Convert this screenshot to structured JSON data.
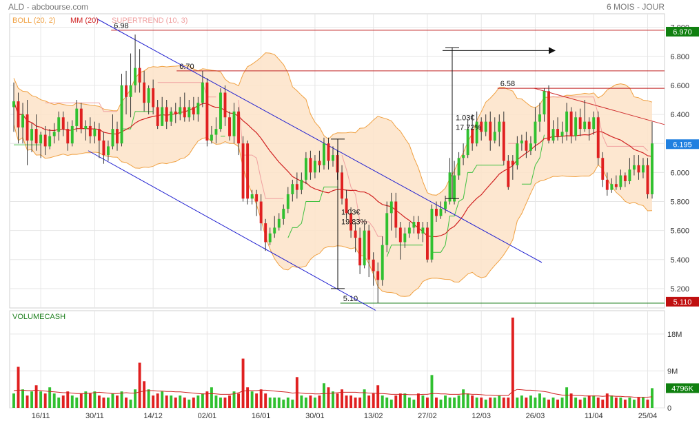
{
  "header": {
    "title": "ALD - abcbourse.com",
    "period": "6 MOIS - JOUR"
  },
  "legend": [
    {
      "label": "BOLL (20, 2)",
      "color": "#f0a040"
    },
    {
      "label": "MM (20)",
      "color": "#d02020"
    },
    {
      "label": "SUPERTREND (10, 3)",
      "color": "#f0a0a0"
    }
  ],
  "colors": {
    "up": "#30c030",
    "down": "#e02020",
    "boll_fill": "#fde3c8",
    "boll_line": "#f0a040",
    "ma": "#d02020",
    "supertrend_up": "#40c040",
    "supertrend_down": "#f0a0a0",
    "channel": "#2020d0",
    "level": "#c02020",
    "support": "#208020",
    "price_tag": "#2080e0",
    "grid": "#e6e6e6"
  },
  "chart_data": {
    "type": "candlestick",
    "x_ticks": [
      "16/11",
      "30/11",
      "14/12",
      "02/01",
      "16/01",
      "30/01",
      "13/02",
      "27/02",
      "12/03",
      "26/03",
      "11/04",
      "25/04"
    ],
    "price": {
      "ylim": [
        5.1,
        7.06
      ],
      "y_ticks": [
        "7.000",
        "6.800",
        "6.600",
        "6.400",
        "6.200",
        "6.000",
        "5.800",
        "5.600",
        "5.400",
        "5.200"
      ],
      "last_price": "6.195",
      "resistance_tag": "6.970",
      "support_tag": "5.110",
      "candles": [
        [
          6.45,
          6.49,
          6.62,
          6.28
        ],
        [
          6.49,
          6.31,
          6.55,
          6.2
        ],
        [
          6.31,
          6.4,
          6.48,
          6.2
        ],
        [
          6.4,
          6.22,
          6.5,
          6.05
        ],
        [
          6.22,
          6.3,
          6.34,
          6.14
        ],
        [
          6.3,
          6.2,
          6.4,
          6.15
        ],
        [
          6.2,
          6.26,
          6.28,
          6.1
        ],
        [
          6.26,
          6.18,
          6.32,
          6.12
        ],
        [
          6.18,
          6.25,
          6.3,
          6.16
        ],
        [
          6.25,
          6.28,
          6.34,
          6.2
        ],
        [
          6.28,
          6.38,
          6.42,
          6.22
        ],
        [
          6.38,
          6.3,
          6.42,
          6.25
        ],
        [
          6.3,
          6.2,
          6.35,
          6.15
        ],
        [
          6.2,
          6.32,
          6.36,
          6.18
        ],
        [
          6.32,
          6.44,
          6.5,
          6.28
        ],
        [
          6.44,
          6.3,
          6.48,
          6.27
        ],
        [
          6.3,
          6.32,
          6.36,
          6.22
        ],
        [
          6.32,
          6.25,
          6.38,
          6.2
        ],
        [
          6.25,
          6.3,
          6.35,
          6.2
        ],
        [
          6.3,
          6.22,
          6.34,
          6.1
        ],
        [
          6.22,
          6.12,
          6.28,
          6.06
        ],
        [
          6.12,
          6.18,
          6.22,
          6.08
        ],
        [
          6.18,
          6.3,
          6.4,
          6.16
        ],
        [
          6.3,
          6.2,
          6.35,
          6.15
        ],
        [
          6.2,
          6.6,
          6.68,
          6.18
        ],
        [
          6.6,
          6.52,
          6.7,
          6.4
        ],
        [
          6.52,
          6.6,
          6.82,
          6.38
        ],
        [
          6.6,
          6.72,
          6.95,
          6.55
        ],
        [
          6.72,
          6.62,
          6.85,
          6.55
        ],
        [
          6.62,
          6.48,
          6.7,
          6.42
        ],
        [
          6.48,
          6.58,
          6.6,
          6.4
        ],
        [
          6.58,
          6.45,
          6.64,
          6.4
        ],
        [
          6.45,
          6.32,
          6.5,
          6.3
        ],
        [
          6.32,
          6.45,
          6.52,
          6.35
        ],
        [
          6.45,
          6.35,
          6.5,
          6.3
        ],
        [
          6.35,
          6.42,
          6.45,
          6.32
        ],
        [
          6.42,
          6.4,
          6.48,
          6.34
        ],
        [
          6.4,
          6.45,
          6.52,
          6.36
        ],
        [
          6.45,
          6.38,
          6.55,
          6.35
        ],
        [
          6.38,
          6.45,
          6.5,
          6.35
        ],
        [
          6.45,
          6.4,
          6.52,
          6.36
        ],
        [
          6.4,
          6.48,
          6.52,
          6.35
        ],
        [
          6.48,
          6.62,
          6.7,
          6.45
        ],
        [
          6.62,
          6.22,
          6.65,
          6.18
        ],
        [
          6.22,
          6.26,
          6.32,
          6.2
        ],
        [
          6.26,
          6.3,
          6.38,
          6.2
        ],
        [
          6.3,
          6.55,
          6.58,
          6.28
        ],
        [
          6.55,
          6.38,
          6.6,
          6.32
        ],
        [
          6.38,
          6.25,
          6.42,
          6.22
        ],
        [
          6.25,
          6.42,
          6.48,
          6.2
        ],
        [
          6.42,
          6.2,
          6.45,
          6.12
        ],
        [
          6.2,
          5.82,
          6.25,
          5.8
        ],
        [
          6.2,
          5.82,
          6.22,
          5.78
        ],
        [
          5.82,
          5.85,
          5.88,
          5.78
        ],
        [
          5.85,
          5.8,
          5.88,
          5.7
        ],
        [
          5.8,
          5.65,
          5.85,
          5.6
        ],
        [
          5.65,
          5.52,
          5.68,
          5.46
        ],
        [
          5.52,
          5.58,
          5.62,
          5.5
        ],
        [
          5.58,
          5.62,
          5.7,
          5.55
        ],
        [
          5.62,
          5.68,
          5.72,
          5.6
        ],
        [
          5.68,
          5.75,
          5.78,
          5.64
        ],
        [
          5.75,
          5.85,
          5.9,
          5.72
        ],
        [
          5.85,
          5.92,
          5.95,
          5.8
        ],
        [
          5.92,
          5.88,
          6.0,
          5.82
        ],
        [
          5.88,
          5.95,
          6.0,
          5.85
        ],
        [
          5.95,
          6.1,
          6.14,
          5.92
        ],
        [
          6.1,
          6.0,
          6.15,
          5.95
        ],
        [
          6.0,
          6.08,
          6.12,
          5.96
        ],
        [
          6.08,
          6.05,
          6.15,
          6.0
        ],
        [
          6.05,
          6.2,
          6.24,
          6.02
        ],
        [
          6.2,
          6.08,
          6.24,
          6.02
        ],
        [
          6.08,
          6.12,
          6.18,
          6.04
        ],
        [
          6.12,
          6.0,
          6.15,
          5.95
        ],
        [
          6.0,
          5.82,
          6.05,
          5.78
        ],
        [
          5.82,
          5.72,
          5.88,
          5.68
        ],
        [
          5.72,
          5.6,
          5.76,
          5.55
        ],
        [
          5.6,
          5.55,
          5.65,
          5.45
        ],
        [
          5.55,
          5.36,
          5.62,
          5.3
        ],
        [
          5.36,
          5.6,
          5.65,
          5.34
        ],
        [
          5.6,
          5.4,
          5.64,
          5.28
        ],
        [
          5.4,
          5.32,
          5.45,
          5.22
        ],
        [
          5.32,
          5.26,
          5.38,
          5.1
        ],
        [
          5.26,
          5.5,
          5.56,
          5.22
        ],
        [
          5.5,
          5.72,
          5.8,
          5.45
        ],
        [
          5.72,
          5.8,
          5.86,
          5.6
        ],
        [
          5.8,
          5.62,
          5.86,
          5.55
        ],
        [
          5.62,
          5.52,
          5.66,
          5.4
        ],
        [
          5.52,
          5.58,
          5.62,
          5.48
        ],
        [
          5.58,
          5.62,
          5.66,
          5.55
        ],
        [
          5.62,
          5.66,
          5.7,
          5.58
        ],
        [
          5.66,
          5.58,
          5.7,
          5.54
        ],
        [
          5.58,
          5.62,
          5.66,
          5.52
        ],
        [
          5.62,
          5.4,
          5.66,
          5.38
        ],
        [
          5.4,
          5.75,
          5.78,
          5.38
        ],
        [
          5.75,
          5.7,
          5.8,
          5.66
        ],
        [
          5.7,
          5.75,
          5.8,
          5.68
        ],
        [
          5.75,
          5.8,
          5.84,
          5.72
        ],
        [
          5.8,
          6.0,
          6.1,
          5.78
        ],
        [
          5.8,
          5.98,
          6.08,
          5.78
        ],
        [
          5.98,
          6.1,
          6.14,
          5.95
        ],
        [
          6.1,
          6.12,
          6.2,
          6.05
        ],
        [
          6.12,
          6.3,
          6.36,
          6.1
        ],
        [
          6.3,
          6.2,
          6.4,
          6.15
        ],
        [
          6.2,
          6.35,
          6.42,
          6.18
        ],
        [
          6.35,
          6.28,
          6.38,
          6.22
        ],
        [
          6.28,
          6.35,
          6.4,
          6.25
        ],
        [
          6.35,
          6.22,
          6.42,
          6.15
        ],
        [
          6.22,
          6.28,
          6.38,
          6.2
        ],
        [
          6.28,
          6.35,
          6.4,
          6.18
        ],
        [
          6.35,
          6.08,
          6.42,
          6.05
        ],
        [
          6.08,
          5.9,
          6.12,
          5.88
        ],
        [
          6.08,
          6.05,
          6.12,
          5.95
        ],
        [
          6.05,
          6.2,
          6.25,
          6.02
        ],
        [
          6.2,
          6.22,
          6.26,
          6.15
        ],
        [
          6.22,
          6.15,
          6.28,
          6.1
        ],
        [
          6.15,
          6.2,
          6.25,
          6.12
        ],
        [
          6.2,
          6.35,
          6.45,
          6.15
        ],
        [
          6.35,
          6.4,
          6.48,
          6.28
        ],
        [
          6.4,
          6.56,
          6.58,
          6.35
        ],
        [
          6.56,
          6.22,
          6.6,
          6.2
        ],
        [
          6.22,
          6.3,
          6.36,
          6.2
        ],
        [
          6.3,
          6.25,
          6.38,
          6.22
        ],
        [
          6.25,
          6.28,
          6.35,
          6.2
        ],
        [
          6.28,
          6.42,
          6.48,
          6.22
        ],
        [
          6.42,
          6.25,
          6.45,
          6.2
        ],
        [
          6.25,
          6.38,
          6.42,
          6.22
        ],
        [
          6.38,
          6.3,
          6.44,
          6.25
        ],
        [
          6.3,
          6.35,
          6.5,
          6.28
        ],
        [
          6.35,
          6.3,
          6.38,
          6.22
        ],
        [
          6.3,
          6.38,
          6.42,
          6.26
        ],
        [
          6.38,
          6.1,
          6.42,
          6.05
        ],
        [
          6.1,
          5.95,
          6.14,
          5.9
        ],
        [
          5.95,
          5.88,
          6.0,
          5.84
        ],
        [
          5.88,
          5.92,
          5.96,
          5.86
        ],
        [
          5.92,
          5.9,
          5.98,
          5.88
        ],
        [
          5.9,
          5.98,
          6.02,
          5.88
        ],
        [
          5.98,
          5.94,
          6.0,
          5.9
        ],
        [
          5.94,
          6.02,
          6.1,
          5.92
        ],
        [
          6.02,
          6.05,
          6.12,
          5.98
        ],
        [
          6.05,
          6.0,
          6.12,
          5.95
        ],
        [
          6.0,
          6.05,
          6.1,
          5.96
        ],
        [
          6.05,
          5.85,
          6.1,
          5.82
        ],
        [
          5.85,
          6.2,
          6.35,
          5.82
        ]
      ],
      "levels": [
        {
          "label": "6.98",
          "value": 6.98,
          "color": "#c02020"
        },
        {
          "label": "6.70",
          "value": 6.7,
          "color": "#c02020"
        },
        {
          "label": "6.58",
          "value": 6.58,
          "color": "#c02020"
        },
        {
          "label": "5.10",
          "value": 5.1,
          "color": "#208020"
        }
      ],
      "annotations": [
        {
          "line1": "1.03€",
          "line2": "19.83%"
        },
        {
          "line1": "1.03€",
          "line2": "17.72%"
        }
      ]
    },
    "volume": {
      "title": "VOLUMECASH",
      "ylim": [
        0,
        22
      ],
      "y_ticks": [
        "18M",
        "9M",
        "0"
      ],
      "last_volume": "4796K",
      "values": [
        3.5,
        10.0,
        4.5,
        3.0,
        4.0,
        5.5,
        4.0,
        3.5,
        5.0,
        3.5,
        2.5,
        3.0,
        4.0,
        3.0,
        2.5,
        3.5,
        4.0,
        3.5,
        4.0,
        3.0,
        2.5,
        2.5,
        3.5,
        3.0,
        4.0,
        2.5,
        2.0,
        4.5,
        11.0,
        6.5,
        4.5,
        3.0,
        3.5,
        4.0,
        3.0,
        3.0,
        2.5,
        3.0,
        2.5,
        2.0,
        2.5,
        3.0,
        3.5,
        4.0,
        5.0,
        3.0,
        2.5,
        2.5,
        3.0,
        4.0,
        3.5,
        12.0,
        5.0,
        4.0,
        3.5,
        4.5,
        3.5,
        2.5,
        2.5,
        2.5,
        2.0,
        2.5,
        2.0,
        7.5,
        3.0,
        2.5,
        3.0,
        2.5,
        3.0,
        6.0,
        5.0,
        4.0,
        3.5,
        4.5,
        3.0,
        3.0,
        2.5,
        2.5,
        4.5,
        3.0,
        3.5,
        5.5,
        3.0,
        2.5,
        2.0,
        3.0,
        3.5,
        3.5,
        2.5,
        2.0,
        3.5,
        3.0,
        2.5,
        8.0,
        2.5,
        2.0,
        3.0,
        2.5,
        2.5,
        3.0,
        4.5,
        3.5,
        3.0,
        2.5,
        2.5,
        2.0,
        2.5,
        2.5,
        3.0,
        2.5,
        2.5,
        22.0,
        2.5,
        3.0,
        2.5,
        3.0,
        2.5,
        3.5,
        2.5,
        2.0,
        2.5,
        2.0,
        2.5,
        5.0,
        3.5,
        2.5,
        2.0,
        2.5,
        3.0,
        3.0,
        2.5,
        2.0,
        3.5,
        3.0,
        2.5,
        2.5,
        2.0,
        2.5,
        2.0,
        2.5,
        2.5,
        2.0,
        4.8
      ],
      "ma_values": [
        4.2,
        4.3,
        4.3,
        4.2,
        4.2,
        4.3,
        4.2,
        4.1,
        4.0,
        3.9,
        3.8,
        3.7,
        3.7,
        3.6,
        3.5,
        3.5,
        3.5,
        3.6,
        3.7,
        3.8,
        3.7,
        3.6,
        3.5,
        3.5,
        3.6,
        3.7,
        3.6,
        3.6,
        3.9,
        4.1,
        4.2,
        4.2,
        4.1,
        4.1,
        4.0,
        4.0,
        3.9,
        3.9,
        3.8,
        3.7,
        3.6,
        3.5,
        3.4,
        3.4,
        3.5,
        3.4,
        3.3,
        3.3,
        3.3,
        3.4,
        3.7,
        4.1,
        4.2,
        4.2,
        4.2,
        4.3,
        4.3,
        4.2,
        4.1,
        4.0,
        3.9,
        3.8,
        3.6,
        3.7,
        3.6,
        3.5,
        3.5,
        3.4,
        3.4,
        3.5,
        3.5,
        3.6,
        3.7,
        3.8,
        3.8,
        3.8,
        3.8,
        3.7,
        3.7,
        3.6,
        3.6,
        3.5,
        3.5,
        3.4,
        3.3,
        3.3,
        3.3,
        3.3,
        3.2,
        3.2,
        3.2,
        3.3,
        3.3,
        3.5,
        3.5,
        3.4,
        3.4,
        3.3,
        3.3,
        3.3,
        3.4,
        3.4,
        3.3,
        3.3,
        3.2,
        3.1,
        3.1,
        3.0,
        3.0,
        3.0,
        3.0,
        4.0,
        4.5,
        4.4,
        4.3,
        4.3,
        4.2,
        4.1,
        4.0,
        3.8,
        3.5,
        3.3,
        3.1,
        3.1,
        3.1,
        3.0,
        3.0,
        2.9,
        2.9,
        2.9,
        2.9,
        2.8,
        2.9,
        2.9,
        2.8,
        2.8,
        2.7,
        2.7,
        2.6,
        2.6,
        2.6,
        2.6,
        2.7
      ]
    }
  }
}
